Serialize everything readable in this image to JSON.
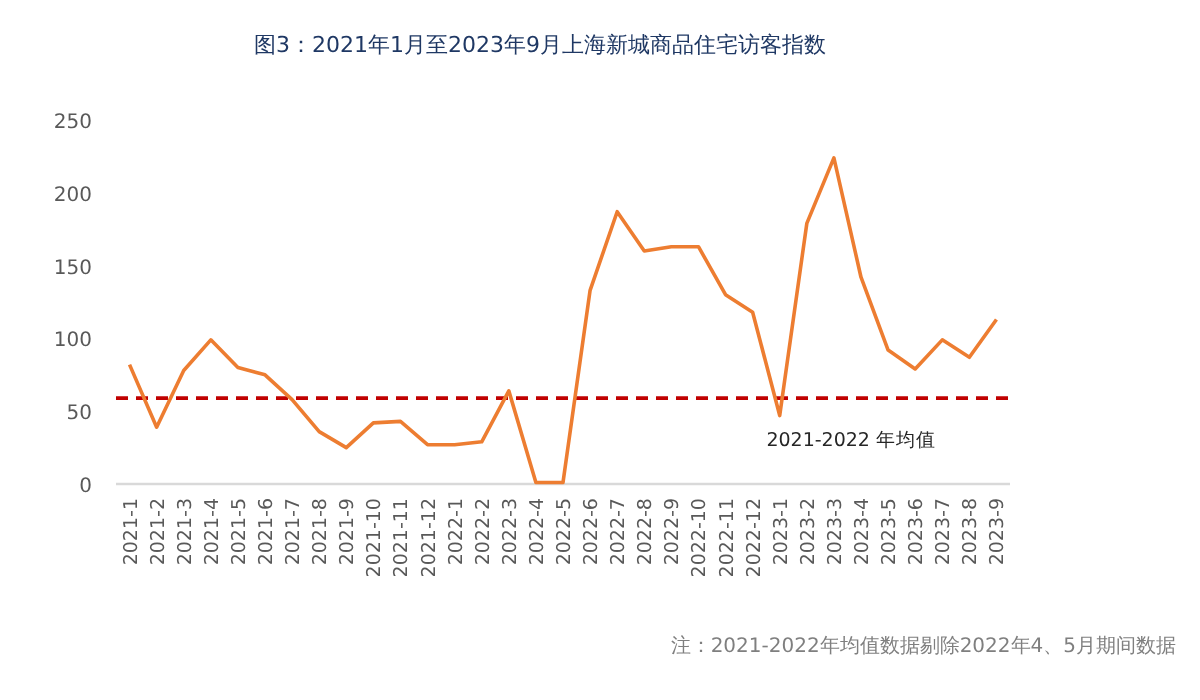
{
  "chart_data": {
    "type": "line",
    "title": "图3：2021年1月至2023年9月上海新城商品住宅访客指数",
    "categories": [
      "2021-1",
      "2021-2",
      "2021-3",
      "2021-4",
      "2021-5",
      "2021-6",
      "2021-7",
      "2021-8",
      "2021-9",
      "2021-10",
      "2021-11",
      "2021-12",
      "2022-1",
      "2022-2",
      "2022-3",
      "2022-4",
      "2022-5",
      "2022-6",
      "2022-7",
      "2022-8",
      "2022-9",
      "2022-10",
      "2022-11",
      "2022-12",
      "2023-1",
      "2023-2",
      "2023-3",
      "2023-4",
      "2023-5",
      "2023-6",
      "2023-7",
      "2023-8",
      "2023-9"
    ],
    "series": [
      {
        "color": "#ed7d31",
        "values": [
          82,
          39,
          78,
          99,
          80,
          75,
          58,
          36,
          25,
          42,
          43,
          27,
          27,
          29,
          64,
          1,
          1,
          133,
          187,
          160,
          163,
          163,
          130,
          118,
          47,
          179,
          224,
          142,
          92,
          79,
          99,
          87,
          113
        ]
      }
    ],
    "ylim": [
      0,
      250
    ],
    "yticks": [
      0,
      50,
      100,
      150,
      200,
      250
    ],
    "ref_lines": [
      {
        "axis": "y",
        "value": 59,
        "label": "2021-2022 年均值",
        "color": "#c00000",
        "line_style": "dashed"
      }
    ],
    "annotations": [
      "注：2021-2022年均值数据剔除2022年4、5月期间数据"
    ],
    "grid": false,
    "marker": "none",
    "line_style": "solid"
  }
}
